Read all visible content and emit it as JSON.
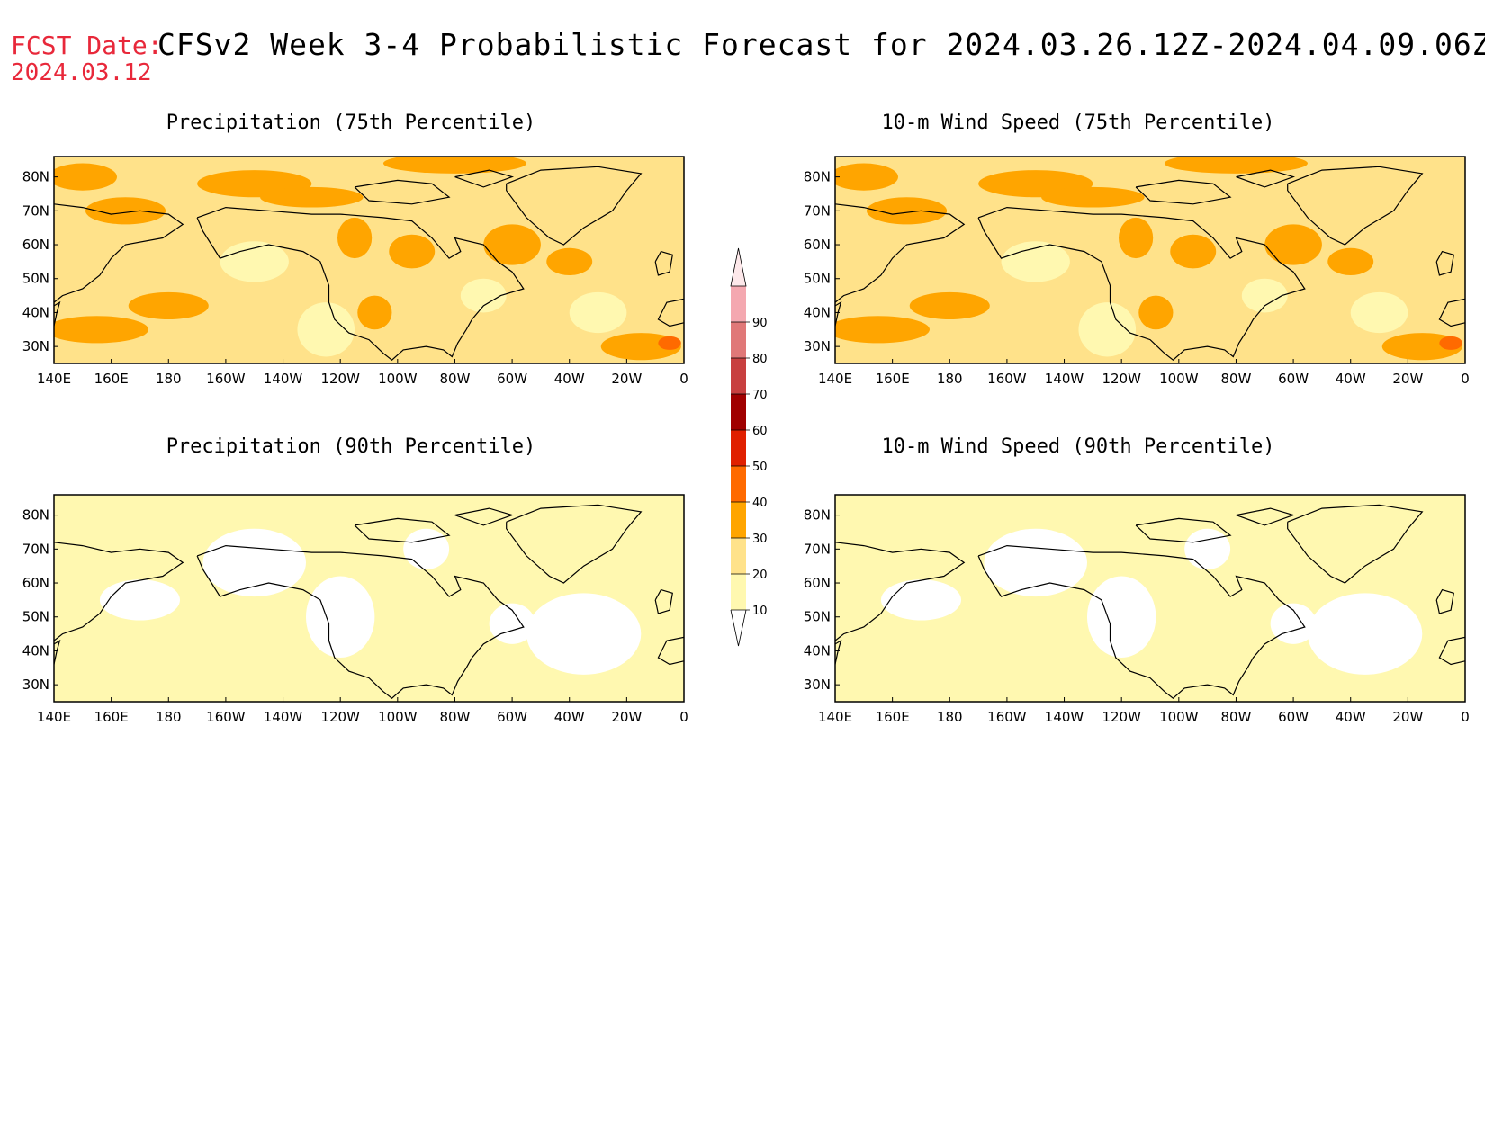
{
  "header": {
    "fcst_label": "FCST Date:",
    "fcst_date": "2024.03.12",
    "title": "CFSv2 Week 3-4 Probabilistic Forecast for 2024.03.26.12Z-2024.04.09.06Z"
  },
  "panels": [
    {
      "id": "precip-75",
      "title": "Precipitation (75th Percentile)",
      "level": "high"
    },
    {
      "id": "wind-75",
      "title": "10-m Wind Speed (75th Percentile)",
      "level": "high"
    },
    {
      "id": "precip-90",
      "title": "Precipitation (90th Percentile)",
      "level": "low"
    },
    {
      "id": "wind-90",
      "title": "10-m Wind Speed (90th Percentile)",
      "level": "low"
    }
  ],
  "map_axes": {
    "x_ticks": [
      "140E",
      "160E",
      "180",
      "160W",
      "140W",
      "120W",
      "100W",
      "80W",
      "60W",
      "40W",
      "20W",
      "0"
    ],
    "y_ticks": [
      "80N",
      "70N",
      "60N",
      "50N",
      "40N",
      "30N"
    ],
    "lon_range": [
      140,
      360
    ],
    "lat_range": [
      25,
      86
    ]
  },
  "colorbar": {
    "levels": [
      "10",
      "20",
      "30",
      "40",
      "50",
      "60",
      "70",
      "80",
      "90"
    ],
    "colors": [
      "#fff8b0",
      "#ffe28a",
      "#ffa500",
      "#ff6a00",
      "#e02000",
      "#a00000",
      "#c84040",
      "#e07878",
      "#f4a8b0"
    ]
  }
}
